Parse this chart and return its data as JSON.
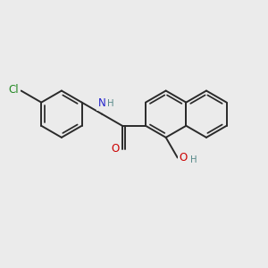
{
  "bg_color": "#ebebeb",
  "bond_color": "#2a2a2a",
  "bond_width": 1.4,
  "atom_colors": {
    "O": "#cc0000",
    "N": "#2222cc",
    "Cl": "#228822",
    "H": "#558888",
    "C": "#2a2a2a"
  },
  "font_size": 8.5,
  "figsize": [
    3.0,
    3.0
  ],
  "dpi": 100,
  "xlim": [
    0,
    10
  ],
  "ylim": [
    0,
    10
  ]
}
